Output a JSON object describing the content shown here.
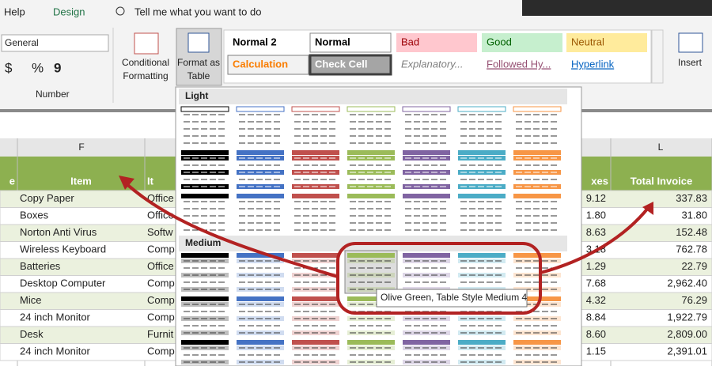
{
  "ribbon": {
    "tabs": [
      "Help",
      "Design"
    ],
    "search": "Tell me what you want to do",
    "number_format": "General",
    "number_symbols": [
      "$",
      "%",
      "9"
    ],
    "number_group": "Number",
    "conditional_formatting": [
      "Conditional",
      "Formatting"
    ],
    "format_as_table": [
      "Format as",
      "Table"
    ],
    "cell_styles": [
      "Normal 2",
      "Normal",
      "Bad",
      "Good",
      "Neutral",
      "Calculation",
      "Check Cell",
      "Explanatory...",
      "Followed Hy...",
      "Hyperlink"
    ],
    "insert": "Insert"
  },
  "gallery": {
    "sections": [
      "Light",
      "Medium"
    ],
    "tooltip": "Olive Green, Table Style Medium 4"
  },
  "sheet": {
    "column_headers": [
      "F",
      "L"
    ],
    "table_headers": [
      "e",
      "Item",
      "It",
      "xes",
      "Total Invoice"
    ],
    "rows": [
      [
        "Copy Paper",
        "Office",
        "9.12",
        "337.83"
      ],
      [
        "Boxes",
        "Office",
        "1.80",
        "31.80"
      ],
      [
        "Norton Anti Virus",
        "Softw",
        "8.63",
        "152.48"
      ],
      [
        "Wireless Keyboard",
        "Comp",
        "3.18",
        "762.78"
      ],
      [
        "Batteries",
        "Office",
        "1.29",
        "22.79"
      ],
      [
        "Desktop Computer",
        "Comp",
        "7.68",
        "2,962.40"
      ],
      [
        "Mice",
        "Comp",
        "4.32",
        "76.29"
      ],
      [
        "24 inch Monitor",
        "Comp",
        "8.84",
        "1,922.79"
      ],
      [
        "Desk",
        "Furnit",
        "8.60",
        "2,809.00"
      ],
      [
        "24 inch Monitor",
        "Comp",
        "1.15",
        "2,391.01"
      ]
    ]
  }
}
